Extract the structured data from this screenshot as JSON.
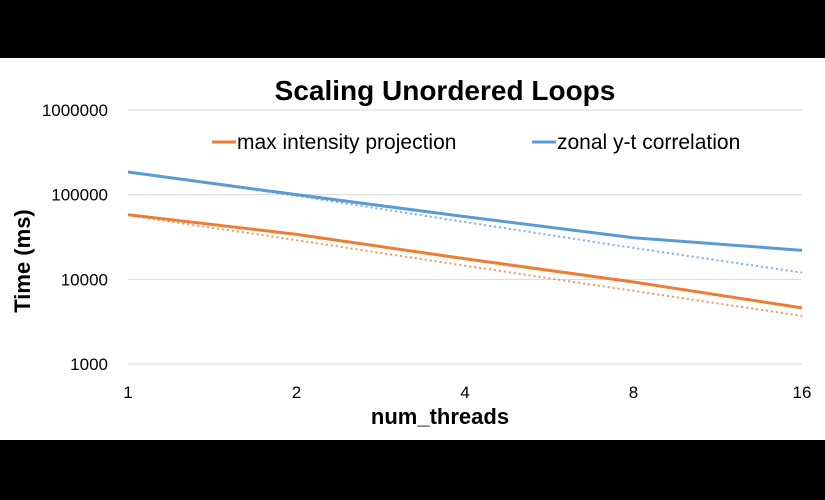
{
  "chart_data": {
    "type": "line",
    "title": "Scaling Unordered Loops",
    "xlabel": "num_threads",
    "ylabel": "Time (ms)",
    "x_scale": "log2",
    "y_scale": "log10",
    "x": [
      1,
      2,
      4,
      8,
      16
    ],
    "x_ticks": [
      "1",
      "2",
      "4",
      "8",
      "16"
    ],
    "y_ticks": [
      "1000",
      "10000",
      "100000",
      "1000000"
    ],
    "ylim": [
      1000,
      1000000
    ],
    "grid": true,
    "legend_position": "top",
    "series": [
      {
        "name": "max intensity projection",
        "values": [
          58000,
          34000,
          17500,
          9300,
          4600
        ],
        "color": "#ED7D31",
        "trendline": {
          "type": "power",
          "values": [
            57000,
            29000,
            14500,
            7300,
            3700
          ]
        }
      },
      {
        "name": "zonal y-t correlation",
        "values": [
          185000,
          100000,
          55000,
          31000,
          22000
        ],
        "color": "#5B9BD5",
        "trendline": {
          "type": "power",
          "values": [
            185000,
            97000,
            47500,
            23500,
            12000
          ]
        }
      }
    ]
  }
}
